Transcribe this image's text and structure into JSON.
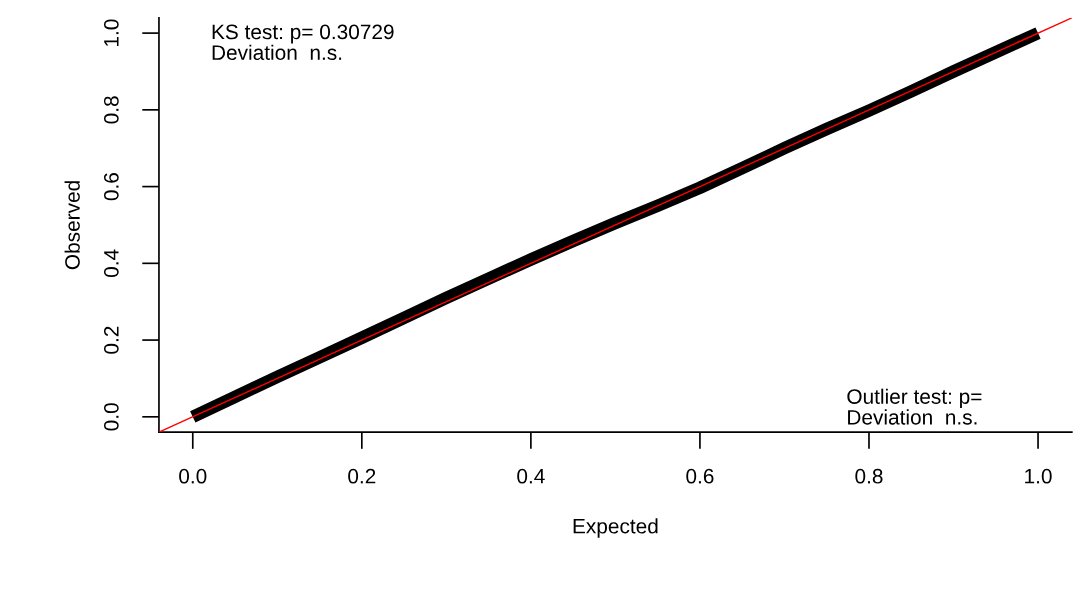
{
  "chart_data": {
    "type": "line",
    "xlabel": "Expected",
    "ylabel": "Observed",
    "series": [
      {
        "color": "#000000",
        "x": [
          0,
          0.05,
          0.1,
          0.15,
          0.2,
          0.25,
          0.3,
          0.35,
          0.4,
          0.45,
          0.5,
          0.55,
          0.6,
          0.65,
          0.7,
          0.75,
          0.8,
          0.85,
          0.9,
          0.95,
          1.0
        ],
        "values": [
          0,
          0.052,
          0.104,
          0.155,
          0.206,
          0.258,
          0.31,
          0.36,
          0.41,
          0.458,
          0.505,
          0.55,
          0.597,
          0.648,
          0.7,
          0.75,
          0.798,
          0.848,
          0.9,
          0.95,
          1.0
        ]
      },
      {
        "color": "#ff0000",
        "x": [
          -0.04,
          1.04
        ],
        "values": [
          -0.04,
          1.04
        ]
      }
    ],
    "xlim": [
      -0.04,
      1.04
    ],
    "ylim": [
      -0.04,
      1.04
    ],
    "xticks": [
      {
        "value": 0,
        "label": "0.0"
      },
      0.2,
      0.4,
      0.6,
      0.8,
      {
        "value": 1,
        "label": "1.0"
      }
    ],
    "yticks": [
      {
        "value": 0,
        "label": "0.0"
      },
      0.2,
      0.4,
      0.6,
      0.8,
      {
        "value": 1,
        "label": "1.0"
      }
    ],
    "grid": false,
    "legend": false,
    "annotations": [
      "KS test: p= 0.30729",
      "Deviation  n.s.",
      "Outlier test: p=",
      "Deviation  n.s."
    ]
  }
}
